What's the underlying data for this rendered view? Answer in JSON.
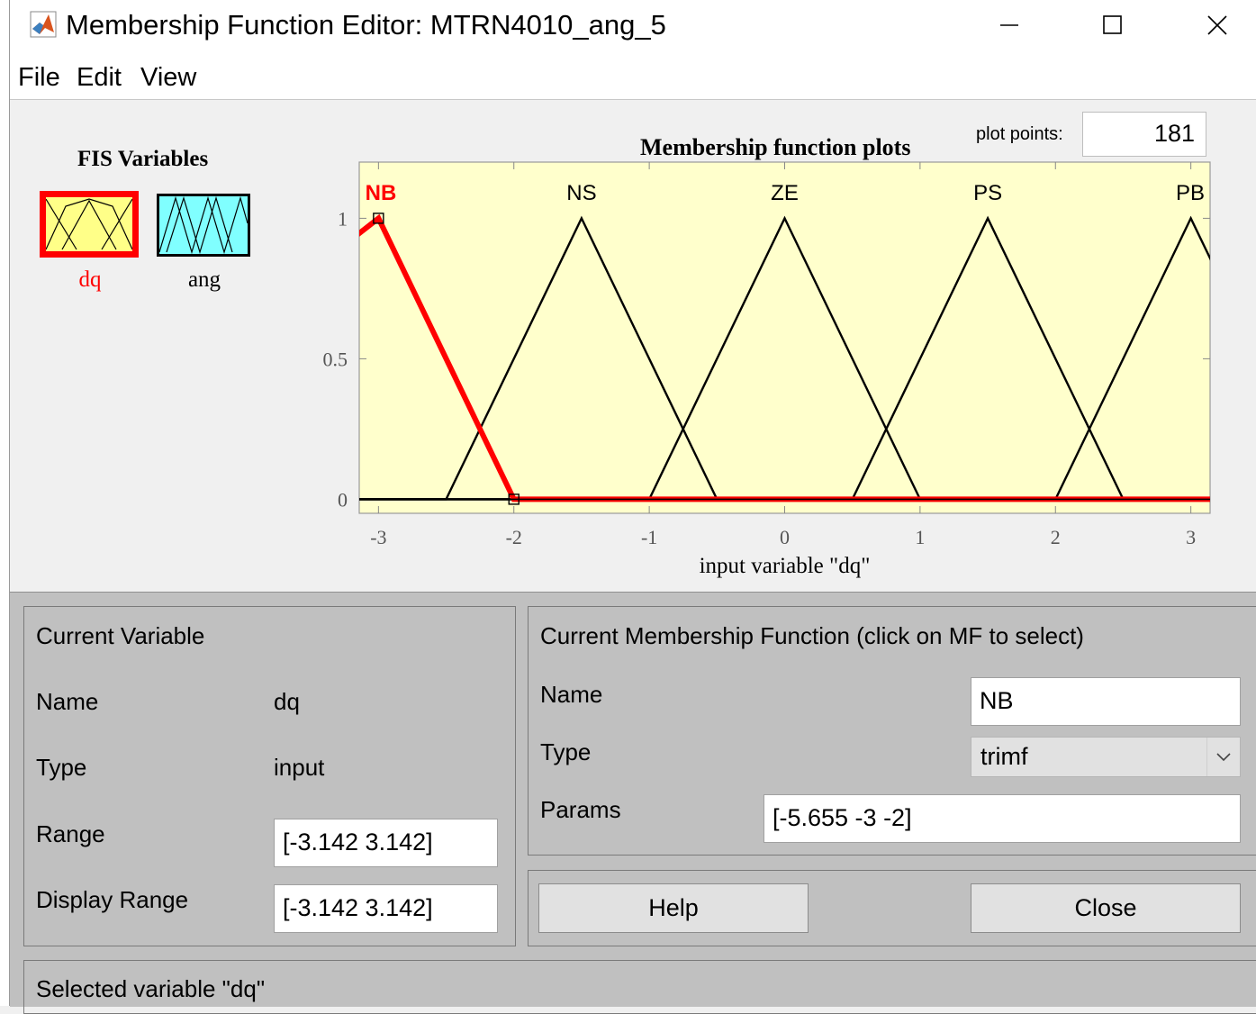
{
  "window": {
    "title": "Membership Function Editor: MTRN4010_ang_5",
    "icons": {
      "app": "matlab-logo-icon",
      "minimize": "minimize-icon",
      "maximize": "maximize-icon",
      "close": "close-icon"
    }
  },
  "menu": {
    "items": [
      "File",
      "Edit",
      "View"
    ]
  },
  "fis_variables": {
    "title": "FIS Variables",
    "items": [
      {
        "label": "dq",
        "selected": true,
        "color": "#ffff88"
      },
      {
        "label": "ang",
        "selected": false,
        "color": "#80ffff"
      }
    ]
  },
  "plot": {
    "points_label": "plot points:",
    "points_value": "181",
    "colors": {
      "background": "#ffffcc",
      "selected": "#ff0000",
      "line": "#000000"
    }
  },
  "chart_data": {
    "type": "line",
    "title": "Membership function plots",
    "xlabel": "input variable \"dq\"",
    "ylabel": "",
    "xlim": [
      -3.142,
      3.142
    ],
    "ylim": [
      -0.05,
      1.2
    ],
    "x_ticks": [
      -3,
      -2,
      -1,
      0,
      1,
      2,
      3
    ],
    "x_tick_labels": [
      "-3",
      "-2",
      "-1",
      "0",
      "1",
      "2",
      "3"
    ],
    "y_ticks": [
      0,
      0.5,
      1
    ],
    "y_tick_labels": [
      "0",
      "0.5",
      "1"
    ],
    "grid": false,
    "series": [
      {
        "name": "NB",
        "mf_type": "trimf",
        "params": [
          -5.655,
          -3,
          -2
        ],
        "selected": true
      },
      {
        "name": "NS",
        "mf_type": "trimf",
        "params": [
          -2.5,
          -1.5,
          -0.5
        ],
        "selected": false
      },
      {
        "name": "ZE",
        "mf_type": "trimf",
        "params": [
          -1,
          0,
          1
        ],
        "selected": false
      },
      {
        "name": "PS",
        "mf_type": "trimf",
        "params": [
          0.5,
          1.5,
          2.5
        ],
        "selected": false
      },
      {
        "name": "PB",
        "mf_type": "trimf",
        "params": [
          2,
          3,
          4
        ],
        "selected": false
      }
    ]
  },
  "current_variable": {
    "title": "Current Variable",
    "name_label": "Name",
    "name_value": "dq",
    "type_label": "Type",
    "type_value": "input",
    "range_label": "Range",
    "range_value": "[-3.142 3.142]",
    "display_range_label": "Display Range",
    "display_range_value": "[-3.142 3.142]"
  },
  "current_mf": {
    "title": "Current Membership Function (click on MF to select)",
    "name_label": "Name",
    "name_value": "NB",
    "type_label": "Type",
    "type_value": "trimf",
    "params_label": "Params",
    "params_value": "[-5.655 -3 -2]"
  },
  "buttons": {
    "help": "Help",
    "close": "Close"
  },
  "status": "Selected variable \"dq\""
}
